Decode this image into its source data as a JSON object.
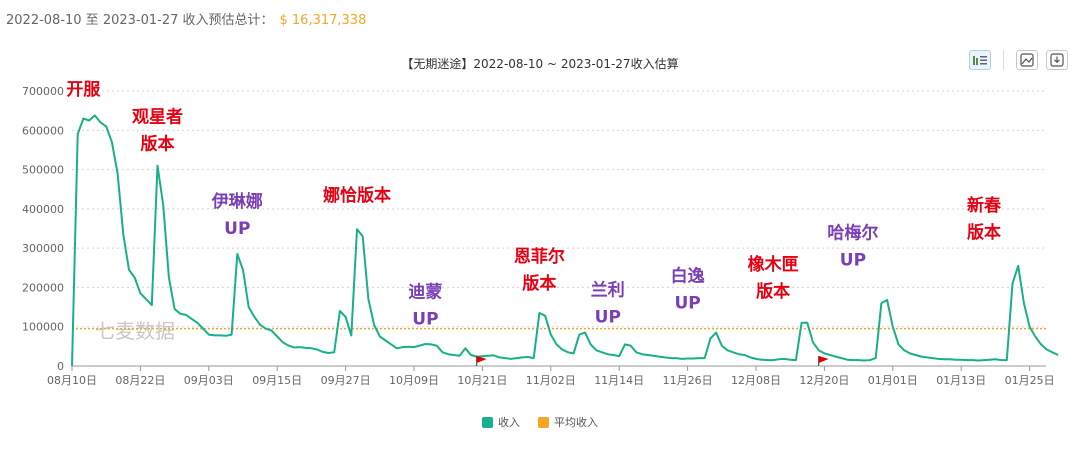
{
  "header": {
    "date_range": "2022-08-10 至 2023-01-27 收入预估总计：",
    "total": "$ 16,317,338"
  },
  "toolbar": {
    "bar_icon": "bar-chart-icon",
    "image_icon": "image-save-icon",
    "download_icon": "download-icon"
  },
  "watermark": "七麦数据",
  "colors": {
    "revenue": "#1aaf8b",
    "average": "#f5a623",
    "flag": "#e00000",
    "annotation_red": "#e60012",
    "annotation_purple": "#7a3fb4"
  },
  "chart_data": {
    "type": "line",
    "title": "【无期迷途】2022-08-10 ~ 2023-01-27收入估算",
    "ylim": [
      0,
      700000
    ],
    "yticks": [
      "0",
      "100000",
      "200000",
      "300000",
      "400000",
      "500000",
      "600000",
      "700000"
    ],
    "xticks": [
      "08月10日",
      "08月22日",
      "09月03日",
      "09月15日",
      "09月27日",
      "10月09日",
      "10月21日",
      "11月02日",
      "11月14日",
      "11月26日",
      "12月08日",
      "12月20日",
      "01月01日",
      "01月13日",
      "01月25日"
    ],
    "grid": true,
    "legend_position": "bottom",
    "average": 95000,
    "series": [
      {
        "name": "收入",
        "values": [
          0,
          590000,
          630000,
          625000,
          638000,
          620000,
          610000,
          570000,
          490000,
          335000,
          245000,
          225000,
          185000,
          170000,
          155000,
          510000,
          410000,
          225000,
          145000,
          133000,
          130000,
          120000,
          110000,
          95000,
          80000,
          78000,
          78000,
          77000,
          80000,
          285000,
          245000,
          150000,
          125000,
          105000,
          95000,
          90000,
          75000,
          60000,
          52000,
          47000,
          48000,
          46000,
          45000,
          42000,
          36000,
          33000,
          35000,
          140000,
          125000,
          78000,
          348000,
          330000,
          170000,
          105000,
          75000,
          65000,
          55000,
          45000,
          48000,
          49000,
          48000,
          52000,
          56000,
          55000,
          52000,
          35000,
          30000,
          28000,
          26000,
          45000,
          28000,
          24000,
          25000,
          26000,
          27000,
          22000,
          20000,
          18000,
          20000,
          22000,
          23000,
          20000,
          135000,
          128000,
          80000,
          55000,
          42000,
          35000,
          32000,
          80000,
          85000,
          55000,
          40000,
          35000,
          30000,
          28000,
          25000,
          55000,
          52000,
          35000,
          30000,
          28000,
          26000,
          24000,
          22000,
          20000,
          20000,
          18000,
          19000,
          19000,
          20000,
          20000,
          70000,
          85000,
          52000,
          40000,
          35000,
          30000,
          28000,
          22000,
          18000,
          16000,
          15000,
          15000,
          17000,
          18000,
          16000,
          15000,
          110000,
          110000,
          60000,
          40000,
          32000,
          28000,
          24000,
          20000,
          16000,
          15000,
          15000,
          14000,
          15000,
          20000,
          160000,
          168000,
          100000,
          55000,
          40000,
          32000,
          28000,
          24000,
          22000,
          20000,
          18000,
          17000,
          17000,
          16000,
          16000,
          15000,
          15000,
          14000,
          15000,
          16000,
          17000,
          15000,
          15000,
          210000,
          255000,
          160000,
          100000,
          75000,
          55000,
          42000,
          35000,
          28000
        ]
      },
      {
        "name": "平均收入",
        "values": []
      }
    ],
    "flags_at_days": [
      71,
      131
    ],
    "annotations": [
      {
        "lines": [
          "开服"
        ],
        "color": "red",
        "day": 2,
        "value": 690000
      },
      {
        "lines": [
          "观星者",
          "版本"
        ],
        "color": "red",
        "day": 15,
        "value": 620000
      },
      {
        "lines": [
          "伊琳娜",
          "UP"
        ],
        "color": "purple",
        "day": 29,
        "value": 405000
      },
      {
        "lines": [
          "娜恰版本"
        ],
        "color": "red",
        "day": 50,
        "value": 420000
      },
      {
        "lines": [
          "迪蒙",
          "UP"
        ],
        "color": "purple",
        "day": 62,
        "value": 175000
      },
      {
        "lines": [
          "恩菲尔",
          "版本"
        ],
        "color": "red",
        "day": 82,
        "value": 265000
      },
      {
        "lines": [
          "兰利",
          "UP"
        ],
        "color": "purple",
        "day": 94,
        "value": 180000
      },
      {
        "lines": [
          "白逸",
          "UP"
        ],
        "color": "purple",
        "day": 108,
        "value": 215000
      },
      {
        "lines": [
          "橡木匣",
          "版本"
        ],
        "color": "red",
        "day": 123,
        "value": 245000
      },
      {
        "lines": [
          "哈梅尔",
          "UP"
        ],
        "color": "purple",
        "day": 137,
        "value": 325000
      },
      {
        "lines": [
          "新春",
          "版本"
        ],
        "color": "red",
        "day": 160,
        "value": 395000
      }
    ]
  }
}
